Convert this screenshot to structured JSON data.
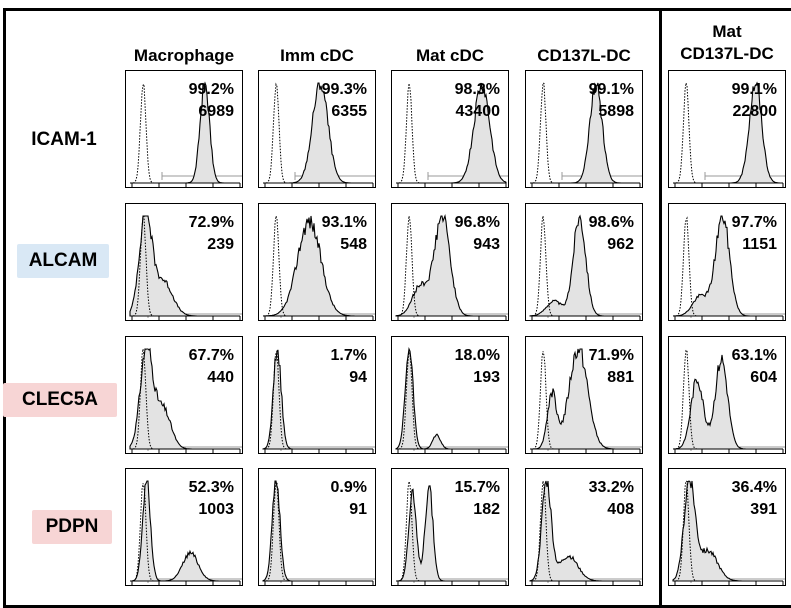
{
  "columns": [
    "Macrophage",
    "Imm cDC",
    "Mat cDC",
    "CD137L-DC",
    "Mat\nCD137L-DC"
  ],
  "rows": [
    {
      "marker": "ICAM-1",
      "highlight": "",
      "cells": [
        {
          "percent": "99.2%",
          "mfi": "6989"
        },
        {
          "percent": "99.3%",
          "mfi": "6355"
        },
        {
          "percent": "98.3%",
          "mfi": "43400"
        },
        {
          "percent": "99.1%",
          "mfi": "5898"
        },
        {
          "percent": "99.1%",
          "mfi": "22800"
        }
      ]
    },
    {
      "marker": "ALCAM",
      "highlight": "#d9e8f5",
      "cells": [
        {
          "percent": "72.9%",
          "mfi": "239"
        },
        {
          "percent": "93.1%",
          "mfi": "548"
        },
        {
          "percent": "96.8%",
          "mfi": "943"
        },
        {
          "percent": "98.6%",
          "mfi": "962"
        },
        {
          "percent": "97.7%",
          "mfi": "1151"
        }
      ]
    },
    {
      "marker": "CLEC5A",
      "highlight": "#f7d5d5",
      "cells": [
        {
          "percent": "67.7%",
          "mfi": "440"
        },
        {
          "percent": "1.7%",
          "mfi": "94"
        },
        {
          "percent": "18.0%",
          "mfi": "193"
        },
        {
          "percent": "71.9%",
          "mfi": "881"
        },
        {
          "percent": "63.1%",
          "mfi": "604"
        }
      ]
    },
    {
      "marker": "PDPN",
      "highlight": "#f7d5d5",
      "cells": [
        {
          "percent": "52.3%",
          "mfi": "1003"
        },
        {
          "percent": "0.9%",
          "mfi": "91"
        },
        {
          "percent": "15.7%",
          "mfi": "182"
        },
        {
          "percent": "33.2%",
          "mfi": "408"
        },
        {
          "percent": "36.4%",
          "mfi": "391"
        }
      ]
    }
  ],
  "colors": {
    "fill": "#e3e3e3",
    "stroke": "#000000",
    "gate": "#9a9a9a"
  }
}
